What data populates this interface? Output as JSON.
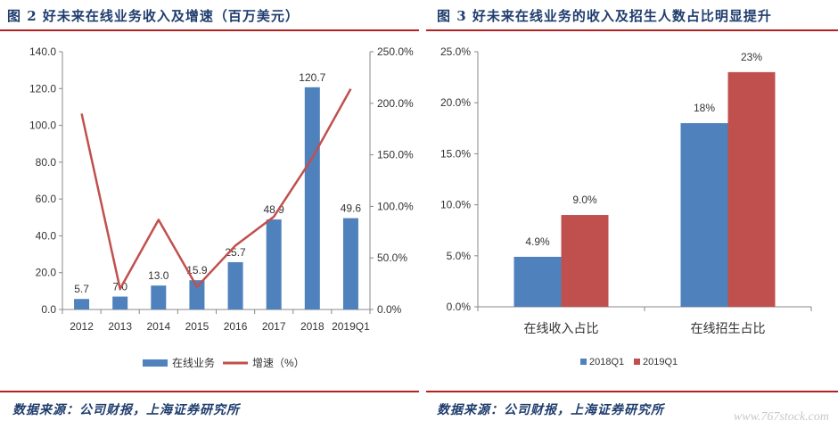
{
  "left": {
    "title": "图 2 好未来在线业务收入及增速（百万美元）",
    "source": "数据来源：公司财报，上海证券研究所"
  },
  "right": {
    "title": "图 3 好未来在线业务的收入及招生人数占比明显提升",
    "source": "数据来源：公司财报，上海证券研究所"
  },
  "watermark": "www.767stock.com",
  "colors": {
    "bar_blue": "#4f81bd",
    "bar_red": "#c0504d",
    "line_red": "#c0504d",
    "rule": "#b22222"
  },
  "chart_data": [
    {
      "type": "bar",
      "categories": [
        "2012",
        "2013",
        "2014",
        "2015",
        "2016",
        "2017",
        "2018",
        "2019Q1"
      ],
      "series": [
        {
          "name": "在线业务",
          "type": "bar",
          "axis": "left",
          "values": [
            5.7,
            7.0,
            13.0,
            15.9,
            25.7,
            48.9,
            120.7,
            49.6
          ],
          "labels": [
            "5.7",
            "7.0",
            "13.0",
            "15.9",
            "25.7",
            "48.9",
            "120.7",
            "49.6"
          ]
        },
        {
          "name": "增速（%）",
          "type": "line",
          "axis": "right",
          "values": [
            190,
            20,
            87,
            22,
            62,
            90,
            147,
            214
          ]
        }
      ],
      "ylim": [
        0,
        140
      ],
      "yticks": [
        "0.0",
        "20.0",
        "40.0",
        "60.0",
        "80.0",
        "100.0",
        "120.0",
        "140.0"
      ],
      "y2lim": [
        0,
        250
      ],
      "y2ticks": [
        "0.0%",
        "50.0%",
        "100.0%",
        "150.0%",
        "200.0%",
        "250.0%"
      ],
      "legend": "bottom",
      "grid": false
    },
    {
      "type": "bar",
      "categories": [
        "在线收入占比",
        "在线招生占比"
      ],
      "series": [
        {
          "name": "2018Q1",
          "values": [
            4.9,
            18
          ],
          "labels": [
            "4.9%",
            "18%"
          ]
        },
        {
          "name": "2019Q1",
          "values": [
            9.0,
            23
          ],
          "labels": [
            "9.0%",
            "23%"
          ]
        }
      ],
      "ylim": [
        0,
        25
      ],
      "yticks": [
        "0.0%",
        "5.0%",
        "10.0%",
        "15.0%",
        "20.0%",
        "25.0%"
      ],
      "legend": "bottom",
      "grid": false
    }
  ]
}
